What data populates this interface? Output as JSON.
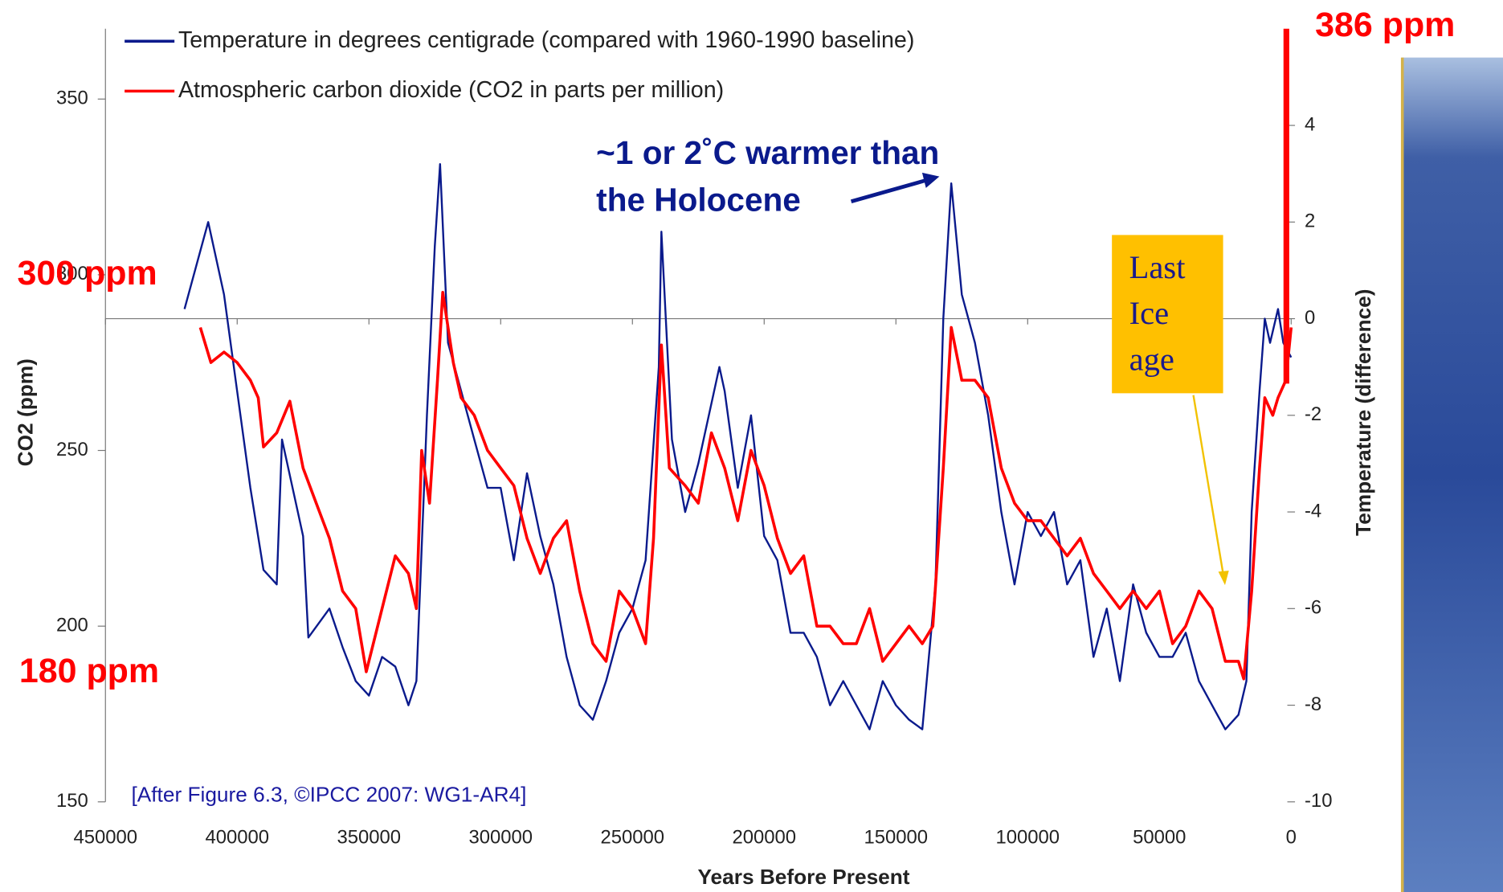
{
  "chart_data": {
    "type": "line",
    "xlabel": "Years Before Present",
    "ylabel": "CO2 (ppm)",
    "y2label": "Temperature (difference)",
    "xlim": [
      450000,
      0
    ],
    "xticks": [
      450000,
      400000,
      350000,
      300000,
      250000,
      200000,
      150000,
      100000,
      50000,
      0
    ],
    "ylim": [
      150,
      370
    ],
    "yticks": [
      150,
      200,
      250,
      300,
      350
    ],
    "y2lim": [
      -10,
      6
    ],
    "y2ticks": [
      4,
      2,
      0,
      -2,
      -4,
      -6,
      -8,
      -10
    ],
    "legend": "upper left",
    "grid": false,
    "annotations": {
      "current_co2": "386 ppm",
      "high_co2": "300 ppm",
      "low_co2": "180 ppm",
      "warmer": [
        "~1 or 2˚C warmer than",
        "the Holocene"
      ],
      "ice_age": [
        "Last",
        "Ice",
        "age"
      ],
      "credit": "[After Figure 6.3, ©IPCC 2007: WG1-AR4]"
    },
    "series": [
      {
        "name": "Temperature in degrees centigrade (compared with 1960-1990 baseline)",
        "color": "#0a1a8c",
        "axis": "y2",
        "x": [
          420000,
          415000,
          411000,
          405000,
          400000,
          395000,
          390000,
          385000,
          383000,
          375000,
          373000,
          365000,
          360000,
          355000,
          350000,
          345000,
          340000,
          335000,
          332000,
          328000,
          325000,
          323000,
          320000,
          315000,
          310000,
          305000,
          300000,
          295000,
          290000,
          285000,
          280000,
          275000,
          270000,
          265000,
          260000,
          255000,
          250000,
          245000,
          240000,
          239000,
          235000,
          230000,
          225000,
          217000,
          215000,
          210000,
          205000,
          200000,
          195000,
          190000,
          185000,
          180000,
          175000,
          170000,
          165000,
          160000,
          155000,
          150000,
          145000,
          140000,
          135000,
          132000,
          129000,
          125000,
          120000,
          115000,
          110000,
          105000,
          100000,
          95000,
          90000,
          85000,
          80000,
          75000,
          70000,
          65000,
          60000,
          55000,
          50000,
          45000,
          40000,
          35000,
          30000,
          25000,
          20000,
          17000,
          15000,
          12000,
          10000,
          8000,
          5000,
          3000,
          0
        ],
        "values": [
          0.2,
          1.2,
          2.0,
          0.5,
          -1.5,
          -3.5,
          -5.2,
          -5.5,
          -2.5,
          -4.5,
          -6.6,
          -6.0,
          -6.8,
          -7.5,
          -7.8,
          -7.0,
          -7.2,
          -8.0,
          -7.5,
          -2.0,
          1.5,
          3.2,
          -0.5,
          -1.5,
          -2.5,
          -3.5,
          -3.5,
          -5.0,
          -3.2,
          -4.5,
          -5.5,
          -7.0,
          -8.0,
          -8.3,
          -7.5,
          -6.5,
          -6.0,
          -5.0,
          -1.0,
          1.8,
          -2.5,
          -4.0,
          -3.0,
          -1.0,
          -1.5,
          -3.5,
          -2.0,
          -4.5,
          -5.0,
          -6.5,
          -6.5,
          -7.0,
          -8.0,
          -7.5,
          -8.0,
          -8.5,
          -7.5,
          -8.0,
          -8.3,
          -8.5,
          -5.5,
          0.0,
          2.8,
          0.5,
          -0.5,
          -2.0,
          -4.0,
          -5.5,
          -4.0,
          -4.5,
          -4.0,
          -5.5,
          -5.0,
          -7.0,
          -6.0,
          -7.5,
          -5.5,
          -6.5,
          -7.0,
          -7.0,
          -6.5,
          -7.5,
          -8.0,
          -8.5,
          -8.2,
          -7.5,
          -4.0,
          -1.5,
          0.0,
          -0.5,
          0.2,
          -0.5,
          -0.8
        ]
      },
      {
        "name": "Atmospheric carbon dioxide (CO2 in parts per million)",
        "color": "#ff0000",
        "axis": "y",
        "x": [
          414000,
          410000,
          405000,
          400000,
          395000,
          392000,
          390000,
          385000,
          380000,
          375000,
          370000,
          365000,
          360000,
          355000,
          351000,
          345000,
          340000,
          335000,
          332000,
          330000,
          327000,
          324000,
          322000,
          318000,
          315000,
          310000,
          305000,
          300000,
          295000,
          290000,
          285000,
          280000,
          275000,
          270000,
          265000,
          260000,
          255000,
          250000,
          245000,
          242000,
          239000,
          236000,
          230000,
          225000,
          220000,
          215000,
          210000,
          205000,
          200000,
          195000,
          190000,
          185000,
          180000,
          175000,
          170000,
          165000,
          160000,
          155000,
          150000,
          145000,
          140000,
          136000,
          132000,
          129000,
          125000,
          120000,
          115000,
          110000,
          105000,
          100000,
          95000,
          90000,
          85000,
          80000,
          75000,
          70000,
          65000,
          60000,
          55000,
          50000,
          45000,
          40000,
          35000,
          30000,
          25000,
          20000,
          18000,
          15000,
          12000,
          10000,
          7000,
          5000,
          2000,
          0
        ],
        "values": [
          285,
          275,
          278,
          275,
          270,
          265,
          251,
          255,
          264,
          245,
          235,
          225,
          210,
          205,
          187,
          205,
          220,
          215,
          205,
          250,
          235,
          270,
          295,
          275,
          265,
          260,
          250,
          245,
          240,
          225,
          215,
          225,
          230,
          210,
          195,
          190,
          210,
          205,
          195,
          225,
          280,
          245,
          240,
          235,
          255,
          245,
          230,
          250,
          240,
          225,
          215,
          220,
          200,
          200,
          195,
          195,
          205,
          190,
          195,
          200,
          195,
          200,
          245,
          285,
          270,
          270,
          265,
          245,
          235,
          230,
          230,
          225,
          220,
          225,
          215,
          210,
          205,
          210,
          205,
          210,
          195,
          200,
          210,
          205,
          190,
          190,
          185,
          210,
          245,
          265,
          260,
          265,
          270,
          285
        ]
      }
    ]
  }
}
